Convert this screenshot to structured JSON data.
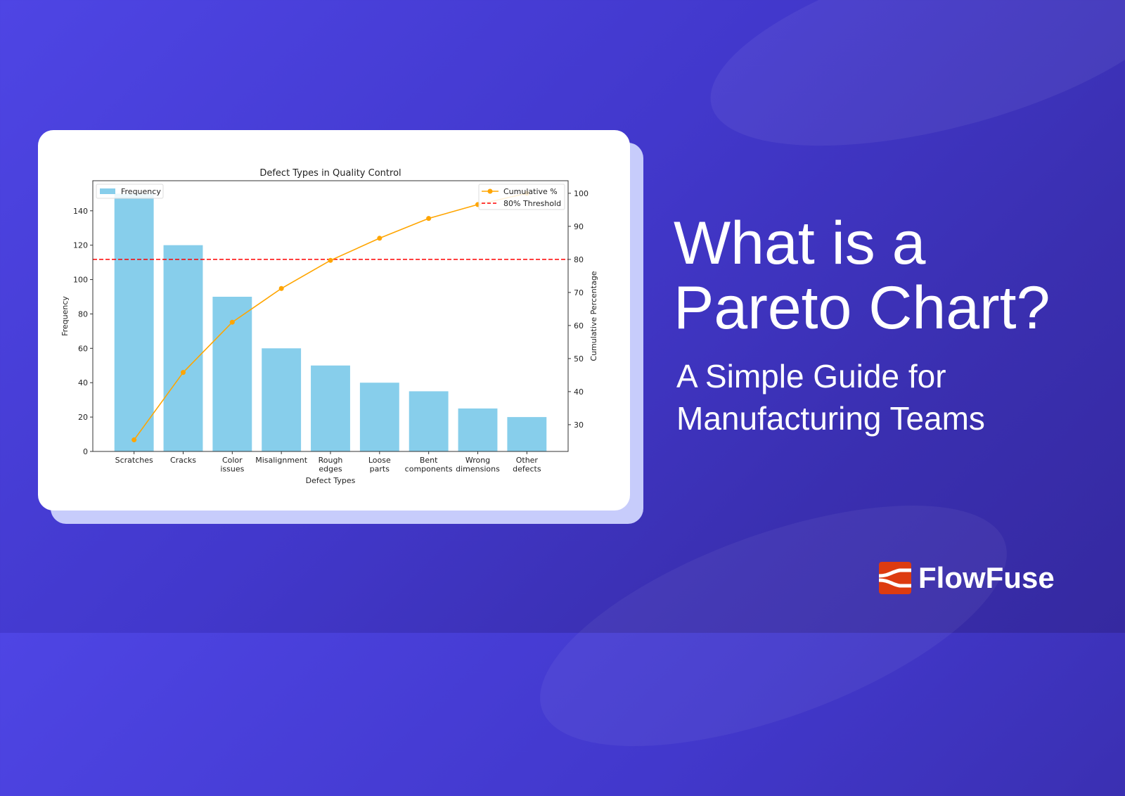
{
  "headline": {
    "line1": "What is a",
    "line2": "Pareto Chart?",
    "sub1": "A Simple Guide for",
    "sub2": "Manufacturing Teams"
  },
  "brand": {
    "name": "FlowFuse",
    "logo_color": "#dd3b10"
  },
  "colors": {
    "bar": "#87ceeb",
    "line": "#ffa500",
    "threshold": "#ff0000"
  },
  "chart_data": {
    "type": "bar",
    "title": "Defect Types in Quality Control",
    "xlabel": "Defect Types",
    "ylabel": "Frequency",
    "y2label": "Cumulative Percentage",
    "categories": [
      "Scratches",
      "Cracks",
      "Color\nissues",
      "Misalignment",
      "Rough\nedges",
      "Loose\nparts",
      "Bent\ncomponents",
      "Wrong\ndimensions",
      "Other\ndefects"
    ],
    "series": [
      {
        "name": "Frequency",
        "type": "bar",
        "axis": "left",
        "values": [
          150,
          120,
          90,
          60,
          50,
          40,
          35,
          25,
          20
        ]
      },
      {
        "name": "Cumulative %",
        "type": "line",
        "axis": "right",
        "marker": "circle",
        "values": [
          25.4,
          45.8,
          61.0,
          71.2,
          79.7,
          86.4,
          92.4,
          96.6,
          100.0
        ]
      }
    ],
    "reference_lines": [
      {
        "name": "80% Threshold",
        "axis": "right",
        "value": 80,
        "style": "dashed"
      }
    ],
    "ylim": [
      0,
      157.5
    ],
    "y2lim": [
      21.9,
      103.8
    ],
    "yticks": [
      0,
      20,
      40,
      60,
      80,
      100,
      120,
      140
    ],
    "y2ticks": [
      30,
      40,
      50,
      60,
      70,
      80,
      90,
      100
    ],
    "legend": {
      "left": "top-left",
      "right": "top-right"
    },
    "grid": false
  }
}
